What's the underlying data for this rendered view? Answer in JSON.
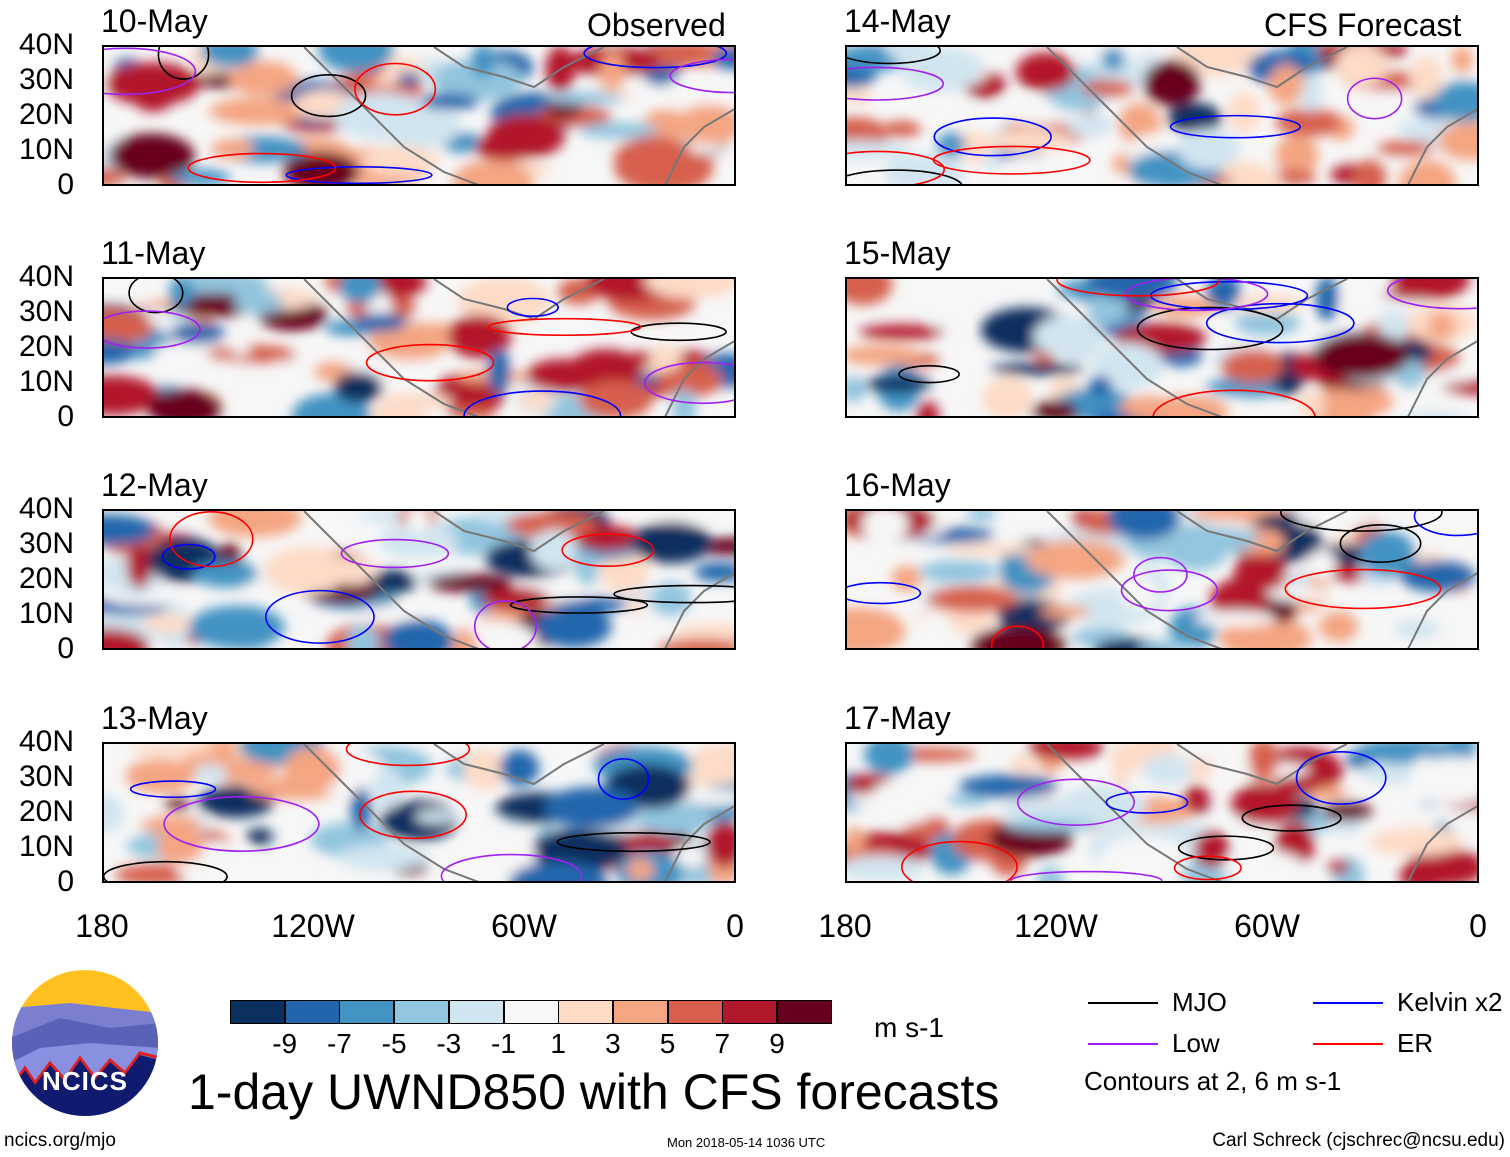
{
  "titles": {
    "observed": "Observed",
    "forecast": "CFS Forecast"
  },
  "panels": [
    {
      "date": "10-May",
      "column": "observed"
    },
    {
      "date": "11-May",
      "column": "observed"
    },
    {
      "date": "12-May",
      "column": "observed"
    },
    {
      "date": "13-May",
      "column": "observed"
    },
    {
      "date": "14-May",
      "column": "forecast"
    },
    {
      "date": "15-May",
      "column": "forecast"
    },
    {
      "date": "16-May",
      "column": "forecast"
    },
    {
      "date": "17-May",
      "column": "forecast"
    }
  ],
  "lat_labels": [
    "40N",
    "30N",
    "20N",
    "10N",
    "0"
  ],
  "lon_labels": [
    "180",
    "120W",
    "60W",
    "0"
  ],
  "colorbar": {
    "colors": [
      "#0b2f5f",
      "#2166ac",
      "#4393c3",
      "#92c5de",
      "#d1e5f0",
      "#f7f7f7",
      "#fddbc7",
      "#f4a582",
      "#d6604d",
      "#b2182b",
      "#67001f"
    ],
    "labels": [
      "-9",
      "-7",
      "-5",
      "-3",
      "-1",
      "1",
      "3",
      "5",
      "7",
      "9"
    ],
    "units": "m s-1"
  },
  "legend": [
    {
      "label": "MJO",
      "color": "#000000"
    },
    {
      "label": "Kelvin x2",
      "color": "#0000ff"
    },
    {
      "label": "Low",
      "color": "#a020f0"
    },
    {
      "label": "ER",
      "color": "#ff0000"
    }
  ],
  "contour_note": "Contours at 2, 6 m s-1",
  "main_title": "1-day UWND850 with CFS forecasts",
  "logo_text": "NCICS",
  "footer": {
    "left": "ncics.org/mjo",
    "center": "Mon 2018-05-14 1036 UTC",
    "right": "Carl Schreck (cjschrec@ncsu.edu)"
  }
}
